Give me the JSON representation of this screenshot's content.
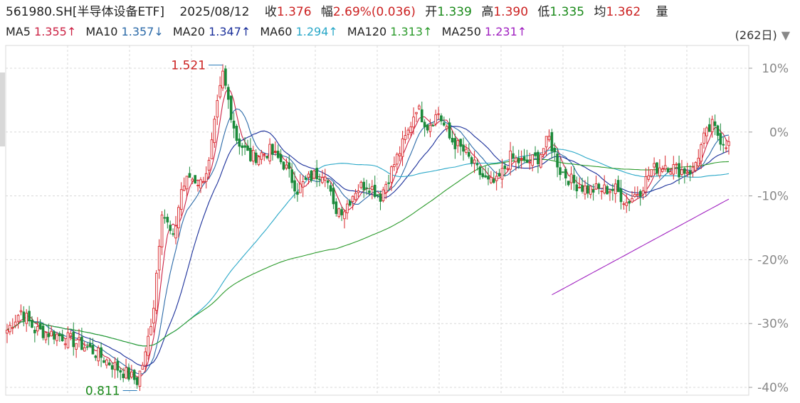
{
  "header": {
    "code": "561980.SH",
    "name": "[半导体设备ETF]",
    "date": "2025/08/12",
    "close_label": "收",
    "close_value": "1.376",
    "change_label": "幅",
    "change_value": "2.69%(0.036)",
    "open_label": "开",
    "open_value": "1.339",
    "high_label": "高",
    "high_value": "1.390",
    "low_label": "低",
    "low_value": "1.335",
    "avg_label": "均",
    "avg_value": "1.362",
    "volume_label": "量"
  },
  "ma_legend": [
    {
      "label": "MA5",
      "value": "1.355↑",
      "color": "#cc2244"
    },
    {
      "label": "MA10",
      "value": "1.357↓",
      "color": "#2b6aa8"
    },
    {
      "label": "MA20",
      "value": "1.347↑",
      "color": "#1a2f9a"
    },
    {
      "label": "MA60",
      "value": "1.294↑",
      "color": "#2aa8c8"
    },
    {
      "label": "MA120",
      "value": "1.313↑",
      "color": "#2a9a2a"
    },
    {
      "label": "MA250",
      "value": "1.231↑",
      "color": "#a020c0"
    }
  ],
  "period_label": "(262日)",
  "colors": {
    "up": "#d9262b",
    "down": "#1b8a3a",
    "grid": "#d8d8d8",
    "axis_text": "#888888"
  },
  "chart_data": {
    "type": "candlestick",
    "bars": 262,
    "y_axis": {
      "ticks": [
        "10%",
        "0%",
        "-10%",
        "-20%",
        "-30%",
        "-40%"
      ],
      "values": [
        10,
        0,
        -10,
        -20,
        -30,
        -40
      ],
      "ylim": [
        -41,
        11
      ]
    },
    "annotations": [
      {
        "text": "1.521",
        "bar": 78,
        "price_pct": 10.5,
        "kind": "high"
      },
      {
        "text": "0.811",
        "bar": 47,
        "price_pct": -40.5,
        "kind": "low"
      }
    ],
    "price_keypoints_pct": [
      [
        0,
        -31
      ],
      [
        5,
        -28
      ],
      [
        10,
        -31
      ],
      [
        20,
        -32
      ],
      [
        30,
        -34
      ],
      [
        40,
        -37
      ],
      [
        47,
        -39
      ],
      [
        50,
        -35
      ],
      [
        53,
        -27
      ],
      [
        56,
        -12
      ],
      [
        60,
        -17
      ],
      [
        63,
        -9
      ],
      [
        66,
        -7
      ],
      [
        70,
        -8
      ],
      [
        73,
        -5
      ],
      [
        76,
        4
      ],
      [
        78,
        9
      ],
      [
        80,
        5
      ],
      [
        83,
        -1
      ],
      [
        88,
        -4
      ],
      [
        95,
        -3
      ],
      [
        100,
        -5
      ],
      [
        105,
        -9
      ],
      [
        110,
        -7
      ],
      [
        115,
        -6
      ],
      [
        118,
        -12
      ],
      [
        122,
        -12
      ],
      [
        126,
        -9
      ],
      [
        130,
        -8
      ],
      [
        135,
        -10
      ],
      [
        140,
        -5
      ],
      [
        145,
        0
      ],
      [
        148,
        4
      ],
      [
        152,
        1
      ],
      [
        156,
        3
      ],
      [
        160,
        -1
      ],
      [
        165,
        -3
      ],
      [
        170,
        -6
      ],
      [
        174,
        -8
      ],
      [
        177,
        -8
      ],
      [
        182,
        -4
      ],
      [
        187,
        -5
      ],
      [
        192,
        -4
      ],
      [
        196,
        -1
      ],
      [
        200,
        -6
      ],
      [
        205,
        -8
      ],
      [
        210,
        -9
      ],
      [
        214,
        -9
      ],
      [
        220,
        -9
      ],
      [
        224,
        -11
      ],
      [
        229,
        -9
      ],
      [
        233,
        -6
      ],
      [
        238,
        -5
      ],
      [
        243,
        -6
      ],
      [
        248,
        -6
      ],
      [
        252,
        -1
      ],
      [
        255,
        1
      ],
      [
        258,
        -1
      ],
      [
        261,
        -2
      ]
    ],
    "series": [
      {
        "name": "MA5"
      },
      {
        "name": "MA10"
      },
      {
        "name": "MA20"
      },
      {
        "name": "MA60"
      },
      {
        "name": "MA120"
      },
      {
        "name": "MA250"
      }
    ]
  }
}
